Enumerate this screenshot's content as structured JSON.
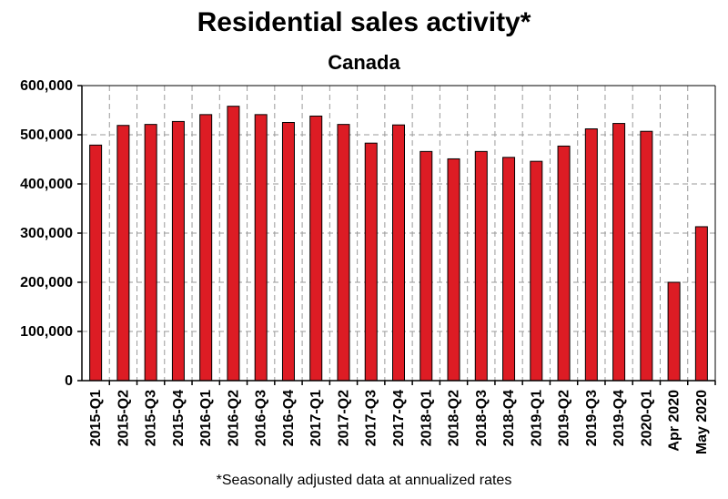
{
  "chart_data": {
    "type": "bar",
    "title": "Residential sales activity*",
    "subtitle": "Canada",
    "footnote": "*Seasonally adjusted data at annualized rates",
    "xlabel": "",
    "ylabel": "",
    "ylim": [
      0,
      600000
    ],
    "yticks": [
      0,
      100000,
      200000,
      300000,
      400000,
      500000,
      600000
    ],
    "ytick_labels": [
      "0",
      "100,000",
      "200,000",
      "300,000",
      "400,000",
      "500,000",
      "600,000"
    ],
    "grid": "dashed",
    "legend": "none",
    "bar_color": "#dd1c24",
    "categories": [
      "2015-Q1",
      "2015-Q2",
      "2015-Q3",
      "2015-Q4",
      "2016-Q1",
      "2016-Q2",
      "2016-Q3",
      "2016-Q4",
      "2017-Q1",
      "2017-Q2",
      "2017-Q3",
      "2017-Q4",
      "2018-Q1",
      "2018-Q2",
      "2018-Q3",
      "2018-Q4",
      "2019-Q1",
      "2019-Q2",
      "2019-Q3",
      "2019-Q4",
      "2020-Q1",
      "Apr 2020",
      "May 2020"
    ],
    "values": [
      479000,
      519000,
      521000,
      527000,
      541000,
      558000,
      541000,
      525000,
      538000,
      521000,
      483000,
      520000,
      466000,
      451000,
      466000,
      454000,
      446000,
      477000,
      512000,
      523000,
      507000,
      200000,
      313000
    ]
  }
}
